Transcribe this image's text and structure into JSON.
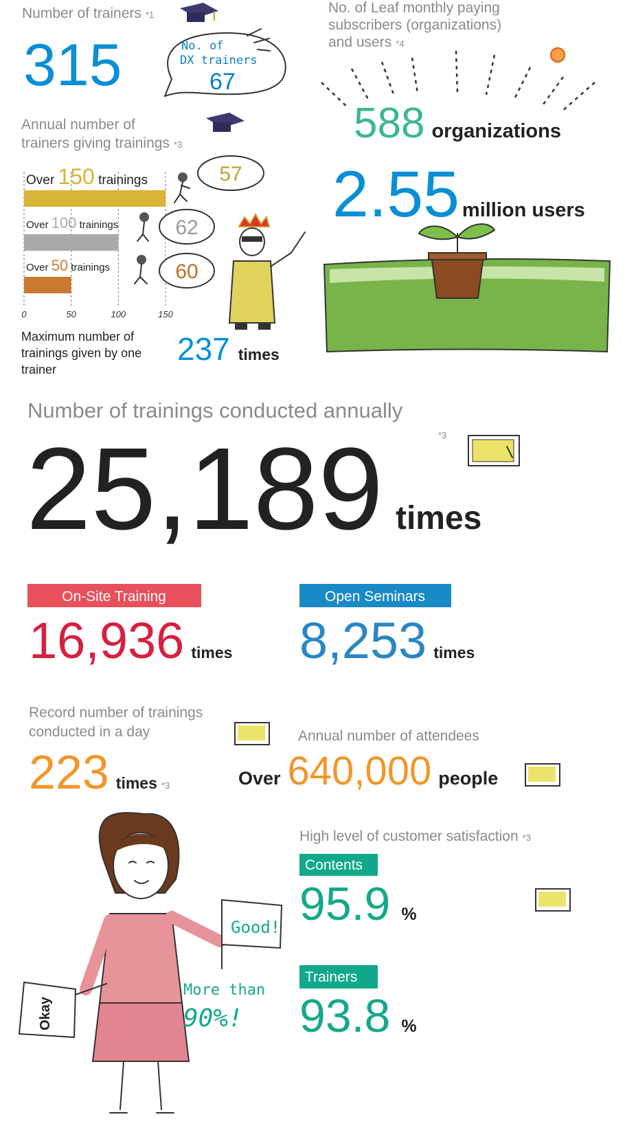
{
  "trainers": {
    "title": "Number of trainers",
    "note": "*1",
    "value": "315",
    "dx": {
      "lines": [
        "No. of",
        "DX trainers"
      ],
      "value": "67"
    }
  },
  "chart_data": {
    "type": "bar",
    "title_lines": [
      "Annual number of",
      "trainers giving trainings"
    ],
    "note": "*3",
    "categories": [
      "Over 150 trainings",
      "Over 100 trainings",
      "Over 50 trainings"
    ],
    "values": [
      150,
      100,
      50
    ],
    "colors": [
      "#d9b437",
      "#a9a9a9",
      "#c97a30"
    ],
    "bubbles": [
      57,
      62,
      60
    ],
    "bubble_colors": [
      "#c2a232",
      "#9a9a9a",
      "#c06d25"
    ],
    "xlim": [
      0,
      150
    ],
    "xticks": [
      0,
      50,
      100,
      150
    ],
    "grid": true
  },
  "max_trainings": {
    "lines": [
      "Maximum number of",
      "trainings given by one",
      "trainer"
    ],
    "value": "237",
    "unit": "times"
  },
  "leaf": {
    "lines": [
      "No. of Leaf monthly paying",
      "subscribers (organizations)",
      "and users"
    ],
    "note": "*4",
    "organizations": {
      "value": "588",
      "unit": "organizations"
    },
    "users": {
      "value": "2.55",
      "unit": "million users"
    }
  },
  "annual": {
    "title": "Number of trainings conducted annually",
    "note": "*3",
    "value": "25,189",
    "unit": "times"
  },
  "onsite": {
    "label": "On-Site Training",
    "value": "16,936",
    "unit": "times"
  },
  "open": {
    "label": "Open Seminars",
    "value": "8,253",
    "unit": "times"
  },
  "record": {
    "lines": [
      "Record number of trainings",
      "conducted in a day"
    ],
    "value": "223",
    "unit": "times",
    "note": "*3"
  },
  "attendees": {
    "title": "Annual number of attendees",
    "prefix": "Over",
    "value": "640,000",
    "unit": "people"
  },
  "satisfaction": {
    "title": "High level of customer satisfaction",
    "note": "*3",
    "items": [
      {
        "label": "Contents",
        "value": "95.9",
        "unit": "%"
      },
      {
        "label": "Trainers",
        "value": "93.8",
        "unit": "%"
      }
    ]
  },
  "illustration": {
    "flag_right": "Good!",
    "flag_left": "Okay",
    "bubble_lines": [
      "More than",
      "90%!"
    ]
  }
}
